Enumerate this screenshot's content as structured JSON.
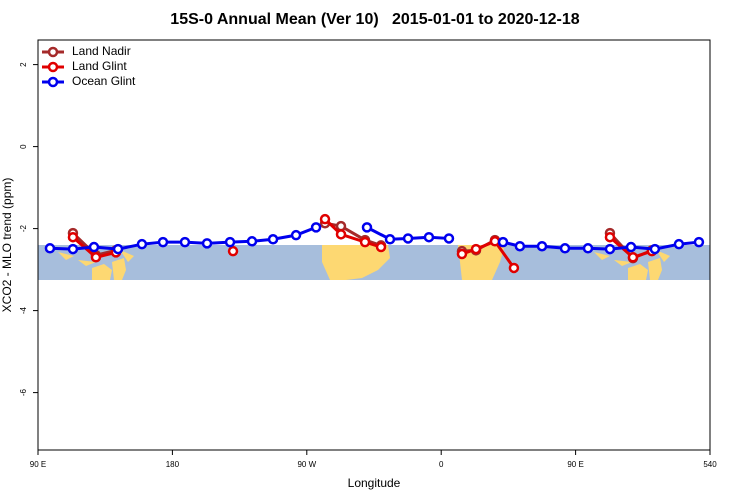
{
  "chart_data": {
    "type": "line",
    "title": "15S-0 Annual Mean (Ver 10)   2015-01-01 to 2020-12-18",
    "x_label": "Longitude",
    "y_label": "XCO2 - MLO trend (ppm)",
    "xlim": [
      90,
      540
    ],
    "ylim": [
      -7.4,
      2.6
    ],
    "xticks": [
      {
        "value": 90,
        "label": "90 E"
      },
      180,
      {
        "value": 270,
        "label": "90 W"
      },
      {
        "value": 360,
        "label": "0"
      },
      {
        "value": 450,
        "label": "90 E"
      },
      540
    ],
    "yticks": [
      2,
      0,
      -2,
      -4,
      -6
    ],
    "legend": "top-left",
    "series": [
      {
        "name": "Land Nadir",
        "color": "#a52a2a",
        "x": [
          113.4,
          128.8,
          142.2,
          null,
          282.2,
          292.9,
          309.0,
          319.7,
          null,
          373.9,
          383.3,
          396.0,
          null,
          473.0,
          488.4,
          501.1
        ],
        "values": [
          -2.11,
          -2.65,
          -2.53,
          null,
          -1.87,
          -1.94,
          -2.28,
          -2.41,
          null,
          -2.55,
          -2.53,
          -2.28,
          null,
          -2.11,
          -2.72,
          -2.53
        ]
      },
      {
        "name": "Land Glint",
        "color": "#e00000",
        "x": [
          113.4,
          128.8,
          142.2,
          null,
          220.6,
          null,
          282.2,
          292.9,
          309.0,
          319.7,
          null,
          373.9,
          383.3,
          396.0,
          408.7,
          null,
          473.0,
          488.4,
          501.1
        ],
        "values": [
          -2.21,
          -2.7,
          -2.58,
          null,
          -2.55,
          null,
          -1.77,
          -2.14,
          -2.33,
          -2.45,
          null,
          -2.62,
          -2.5,
          -2.31,
          -2.96,
          null,
          -2.21,
          -2.7,
          -2.55
        ]
      },
      {
        "name": "Ocean Glint",
        "color": "#0000ee",
        "x": [
          98.0,
          113.4,
          127.5,
          143.6,
          159.6,
          173.7,
          188.4,
          203.2,
          218.6,
          233.3,
          247.4,
          262.8,
          276.2,
          null,
          310.3,
          325.7,
          337.8,
          351.8,
          365.2,
          null,
          401.4,
          412.7,
          427.5,
          442.9,
          458.3,
          473.0,
          487.1,
          503.1,
          519.2,
          532.6
        ],
        "values": [
          -2.48,
          -2.5,
          -2.45,
          -2.5,
          -2.38,
          -2.33,
          -2.33,
          -2.36,
          -2.33,
          -2.31,
          -2.26,
          -2.16,
          -1.97,
          null,
          -1.97,
          -2.26,
          -2.24,
          -2.21,
          -2.24,
          null,
          -2.33,
          -2.43,
          -2.43,
          -2.48,
          -2.48,
          -2.5,
          -2.45,
          -2.5,
          -2.38,
          -2.33
        ]
      }
    ]
  }
}
